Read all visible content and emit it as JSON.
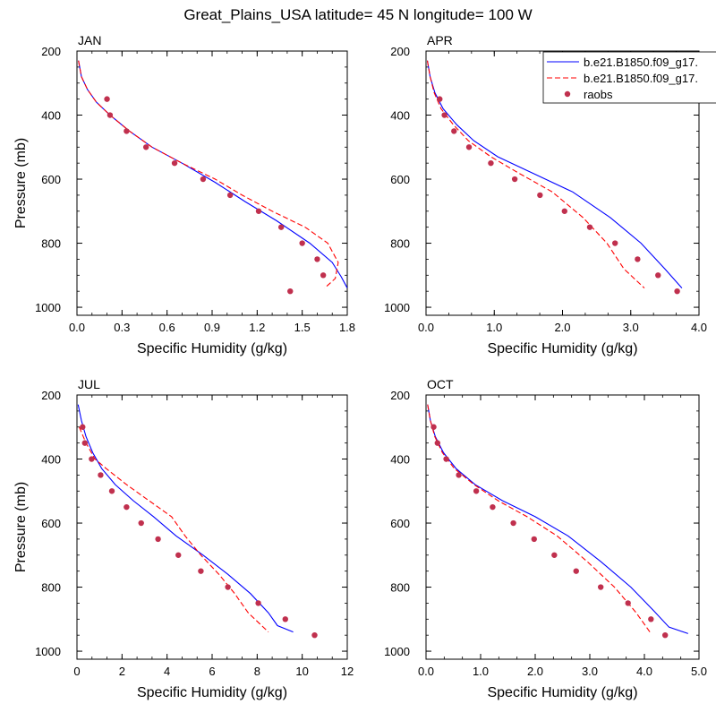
{
  "title": "Great_Plains_USA  latitude= 45 N longitude= 100 W",
  "legend": {
    "entries": [
      {
        "label": "b.e21.B1850.f09_g17.",
        "style": "solid",
        "color": "#0000ff"
      },
      {
        "label": "b.e21.B1850.f09_g17.",
        "style": "dashed",
        "color": "#ff0000"
      },
      {
        "label": "raobs",
        "style": "marker",
        "color": "#c0304e"
      }
    ],
    "placement": "top-right"
  },
  "colors": {
    "model1": "#0000ff",
    "model2": "#ff0000",
    "obs": "#c0304e"
  },
  "chart_data": [
    {
      "type": "line",
      "panel": "JAN",
      "xlabel": "Specific Humidity (g/kg)",
      "ylabel": "Pressure (mb)",
      "xlim": [
        0,
        1.8
      ],
      "ylim": [
        1025,
        200
      ],
      "xticks": [
        "0.0",
        "0.3",
        "0.6",
        "0.9",
        "1.2",
        "1.5",
        "1.8"
      ],
      "xtick_values": [
        0,
        0.3,
        0.6,
        0.9,
        1.2,
        1.5,
        1.8
      ],
      "yticks": [
        "200",
        "400",
        "600",
        "800",
        "1000"
      ],
      "ytick_values": [
        200,
        400,
        600,
        800,
        1000
      ],
      "series": [
        {
          "name": "b.e21.B1850.f09_g17. (solid)",
          "style": "solid",
          "x": [
            0.01,
            0.03,
            0.07,
            0.13,
            0.22,
            0.35,
            0.5,
            0.7,
            0.92,
            1.12,
            1.33,
            1.55,
            1.7,
            1.76,
            1.8
          ],
          "y": [
            230,
            280,
            320,
            360,
            400,
            450,
            500,
            550,
            610,
            670,
            730,
            800,
            860,
            905,
            940
          ]
        },
        {
          "name": "b.e21.B1850.f09_g17. (dashed)",
          "style": "dashed",
          "x": [
            0.01,
            0.03,
            0.07,
            0.13,
            0.22,
            0.35,
            0.5,
            0.7,
            0.92,
            1.1,
            1.3,
            1.52,
            1.67,
            1.74,
            1.72,
            1.65
          ],
          "y": [
            230,
            280,
            320,
            360,
            400,
            450,
            500,
            550,
            600,
            650,
            700,
            750,
            800,
            860,
            910,
            940
          ]
        },
        {
          "name": "raobs",
          "style": "marker",
          "x": [
            0.2,
            0.22,
            0.33,
            0.46,
            0.65,
            0.84,
            1.02,
            1.21,
            1.36,
            1.5,
            1.6,
            1.64,
            1.42
          ],
          "y": [
            350,
            400,
            450,
            500,
            550,
            600,
            650,
            700,
            750,
            800,
            850,
            900,
            950
          ]
        }
      ]
    },
    {
      "type": "line",
      "panel": "APR",
      "xlabel": "Specific Humidity (g/kg)",
      "ylabel": "",
      "xlim": [
        0,
        4.0
      ],
      "ylim": [
        1025,
        200
      ],
      "xticks": [
        "0.0",
        "1.0",
        "2.0",
        "3.0",
        "4.0"
      ],
      "xtick_values": [
        0,
        1,
        2,
        3,
        4
      ],
      "yticks": [
        "200",
        "400",
        "600",
        "800",
        "1000"
      ],
      "ytick_values": [
        200,
        400,
        600,
        800,
        1000
      ],
      "series": [
        {
          "name": "b.e21.B1850.f09_g17. (solid)",
          "style": "solid",
          "x": [
            0.02,
            0.06,
            0.13,
            0.25,
            0.45,
            0.7,
            1.05,
            1.55,
            2.15,
            2.7,
            3.15,
            3.5,
            3.75
          ],
          "y": [
            230,
            280,
            330,
            380,
            430,
            480,
            530,
            580,
            640,
            720,
            800,
            880,
            940
          ]
        },
        {
          "name": "b.e21.B1850.f09_g17. (dashed)",
          "style": "dashed",
          "x": [
            0.02,
            0.06,
            0.12,
            0.22,
            0.4,
            0.62,
            0.95,
            1.35,
            1.85,
            2.3,
            2.65,
            2.9,
            3.2
          ],
          "y": [
            230,
            280,
            330,
            380,
            430,
            480,
            530,
            580,
            640,
            720,
            800,
            880,
            940
          ]
        },
        {
          "name": "raobs",
          "style": "marker",
          "x": [
            0.2,
            0.27,
            0.41,
            0.63,
            0.95,
            1.3,
            1.67,
            2.03,
            2.4,
            2.77,
            3.1,
            3.4,
            3.68
          ],
          "y": [
            350,
            400,
            450,
            500,
            550,
            600,
            650,
            700,
            750,
            800,
            850,
            900,
            950
          ]
        }
      ]
    },
    {
      "type": "line",
      "panel": "JUL",
      "xlabel": "Specific Humidity (g/kg)",
      "ylabel": "Pressure (mb)",
      "xlim": [
        0,
        12
      ],
      "ylim": [
        1025,
        200
      ],
      "xticks": [
        "0",
        "2",
        "4",
        "6",
        "8",
        "10",
        "12"
      ],
      "xtick_values": [
        0,
        2,
        4,
        6,
        8,
        10,
        12
      ],
      "yticks": [
        "200",
        "400",
        "600",
        "800",
        "1000"
      ],
      "ytick_values": [
        200,
        400,
        600,
        800,
        1000
      ],
      "series": [
        {
          "name": "b.e21.B1850.f09_g17. (solid)",
          "style": "solid",
          "x": [
            0.05,
            0.2,
            0.4,
            0.7,
            1.1,
            1.7,
            2.5,
            3.4,
            4.4,
            5.6,
            6.7,
            7.7,
            8.5,
            8.9,
            9.6
          ],
          "y": [
            230,
            280,
            330,
            380,
            430,
            480,
            530,
            580,
            640,
            700,
            760,
            820,
            880,
            920,
            940
          ]
        },
        {
          "name": "b.e21.B1850.f09_g17. (dashed)",
          "style": "dashed",
          "x": [
            0.1,
            0.4,
            0.8,
            1.3,
            2.2,
            3.2,
            4.2,
            4.8,
            5.5,
            6.3,
            7.0,
            7.6,
            8.5
          ],
          "y": [
            300,
            350,
            400,
            430,
            480,
            530,
            580,
            640,
            700,
            760,
            820,
            880,
            940
          ]
        },
        {
          "name": "raobs",
          "style": "marker",
          "x": [
            0.25,
            0.35,
            0.65,
            1.05,
            1.55,
            2.2,
            2.85,
            3.6,
            4.5,
            5.5,
            6.7,
            8.05,
            9.25,
            10.55
          ],
          "y": [
            300,
            350,
            400,
            450,
            500,
            550,
            600,
            650,
            700,
            750,
            800,
            850,
            900,
            950
          ]
        }
      ]
    },
    {
      "type": "line",
      "panel": "OCT",
      "xlabel": "Specific Humidity (g/kg)",
      "ylabel": "",
      "xlim": [
        0,
        5.0
      ],
      "ylim": [
        1025,
        200
      ],
      "xticks": [
        "0.0",
        "1.0",
        "2.0",
        "3.0",
        "4.0",
        "5.0"
      ],
      "xtick_values": [
        0,
        1,
        2,
        3,
        4,
        5
      ],
      "yticks": [
        "200",
        "400",
        "600",
        "800",
        "1000"
      ],
      "ytick_values": [
        200,
        400,
        600,
        800,
        1000
      ],
      "series": [
        {
          "name": "b.e21.B1850.f09_g17. (solid)",
          "style": "solid",
          "x": [
            0.03,
            0.08,
            0.17,
            0.32,
            0.55,
            0.9,
            1.4,
            2.0,
            2.6,
            3.2,
            3.75,
            4.15,
            4.45,
            4.8
          ],
          "y": [
            230,
            280,
            330,
            380,
            430,
            480,
            530,
            580,
            640,
            720,
            800,
            870,
            925,
            945
          ]
        },
        {
          "name": "b.e21.B1850.f09_g17. (dashed)",
          "style": "dashed",
          "x": [
            0.03,
            0.08,
            0.16,
            0.3,
            0.52,
            0.88,
            1.32,
            1.85,
            2.4,
            2.95,
            3.45,
            3.85,
            4.1
          ],
          "y": [
            230,
            280,
            330,
            380,
            430,
            480,
            530,
            580,
            640,
            720,
            800,
            880,
            940
          ]
        },
        {
          "name": "raobs",
          "style": "marker",
          "x": [
            0.14,
            0.21,
            0.37,
            0.6,
            0.92,
            1.22,
            1.6,
            1.98,
            2.35,
            2.75,
            3.2,
            3.7,
            4.12,
            4.38
          ],
          "y": [
            300,
            350,
            400,
            450,
            500,
            550,
            600,
            650,
            700,
            750,
            800,
            850,
            900,
            950
          ]
        }
      ]
    }
  ]
}
